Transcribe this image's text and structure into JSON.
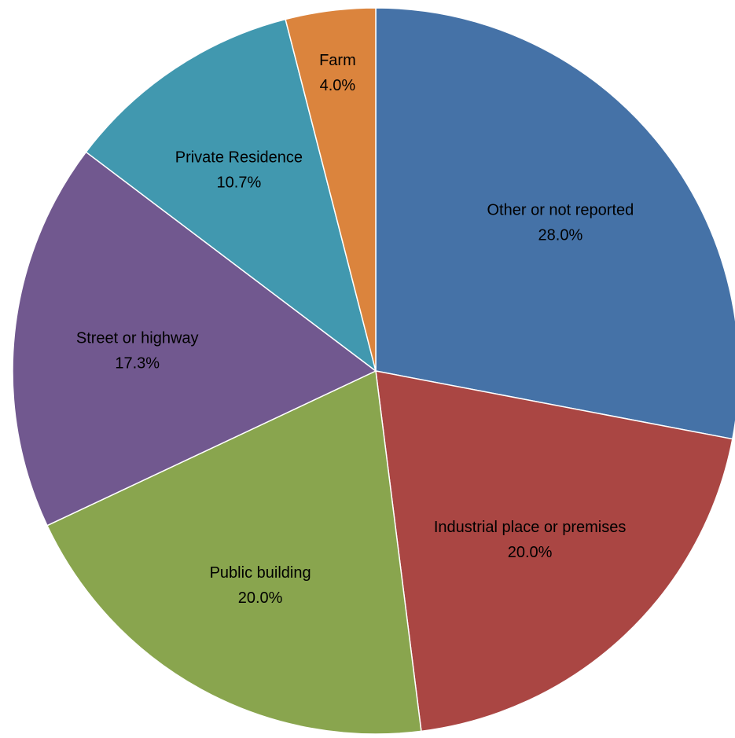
{
  "chart_data": {
    "type": "pie",
    "start_angle_deg": 0,
    "direction": "clockwise",
    "legend": "none",
    "slices": [
      {
        "label": "Other or not reported",
        "value": 28.0,
        "value_label": "28.0%",
        "color": "#4572A7"
      },
      {
        "label": "Industrial place or premises",
        "value": 20.0,
        "value_label": "20.0%",
        "color": "#AA4643"
      },
      {
        "label": "Public building",
        "value": 20.0,
        "value_label": "20.0%",
        "color": "#89A54E"
      },
      {
        "label": "Street or highway",
        "value": 17.3,
        "value_label": "17.3%",
        "color": "#71588F"
      },
      {
        "label": "Private Residence",
        "value": 10.7,
        "value_label": "10.7%",
        "color": "#4198AF"
      },
      {
        "label": "Farm",
        "value": 4.0,
        "value_label": "4.0%",
        "color": "#DB843D"
      }
    ]
  }
}
